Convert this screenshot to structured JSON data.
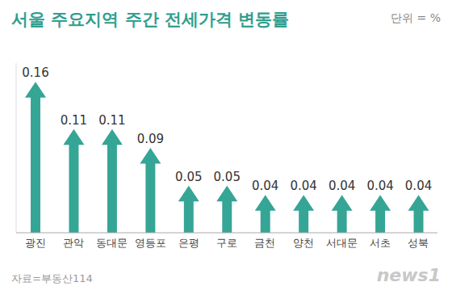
{
  "chart_data": {
    "type": "bar",
    "title": "서울 주요지역 주간 전세가격 변동률",
    "unit": "단위 = %",
    "source": "자료=부동산114",
    "credit": "news1",
    "categories": [
      "광진",
      "관악",
      "동대문",
      "영등포",
      "은평",
      "구로",
      "금천",
      "양천",
      "서대문",
      "서초",
      "성북"
    ],
    "values": [
      0.16,
      0.11,
      0.11,
      0.09,
      0.05,
      0.05,
      0.04,
      0.04,
      0.04,
      0.04,
      0.04
    ],
    "color": "#35a596",
    "ylim": [
      0,
      0.18
    ],
    "data_labels": true,
    "tick_labels": "x",
    "grid": false
  }
}
